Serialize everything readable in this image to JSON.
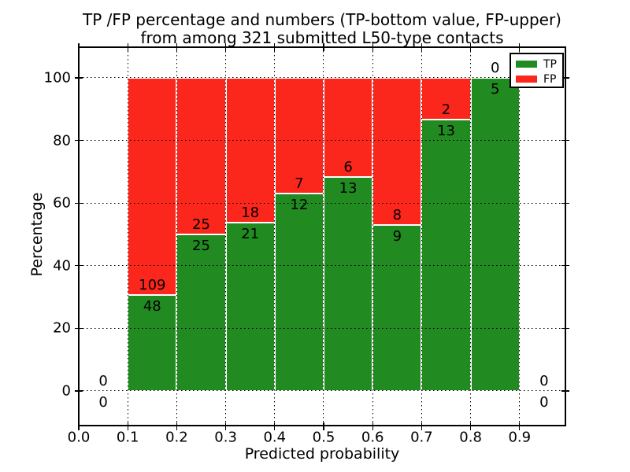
{
  "title": {
    "line1": "TP /FP percentage and numbers (TP-bottom value, FP-upper)",
    "line2": "from among 321 submitted L50-type contacts"
  },
  "legend": {
    "position": "upper right",
    "items": [
      {
        "label": "TP",
        "color": "#218a21"
      },
      {
        "label": "FP",
        "color": "#fb261c"
      }
    ]
  },
  "chart_data": {
    "type": "bar",
    "stacked": true,
    "normalized": "percent",
    "title": "TP /FP percentage and numbers (TP-bottom value, FP-upper)\nfrom among 321 submitted L50-type contacts",
    "xlabel": "Predicted probability",
    "ylabel": "Percentage",
    "x_tick_labels": [
      "0.0",
      "0.1",
      "0.2",
      "0.3",
      "0.4",
      "0.5",
      "0.6",
      "0.7",
      "0.8",
      "0.9"
    ],
    "x_tick_values": [
      0.0,
      0.1,
      0.2,
      0.3,
      0.4,
      0.5,
      0.6,
      0.7,
      0.8,
      0.9
    ],
    "y_tick_labels": [
      "0",
      "20",
      "40",
      "60",
      "80",
      "100"
    ],
    "y_tick_values": [
      0,
      20,
      40,
      60,
      80,
      100
    ],
    "xlim": [
      0.0,
      0.994
    ],
    "ylim": [
      -11.0,
      109.8
    ],
    "grid": true,
    "grid_style": "dotted",
    "series": [
      {
        "name": "TP",
        "color": "#218a21"
      },
      {
        "name": "FP",
        "color": "#fb261c"
      }
    ],
    "bins": [
      {
        "range": [
          0.0,
          0.1
        ],
        "tp": 0,
        "fp": 0
      },
      {
        "range": [
          0.1,
          0.2
        ],
        "tp": 48,
        "fp": 109
      },
      {
        "range": [
          0.2,
          0.3
        ],
        "tp": 25,
        "fp": 25
      },
      {
        "range": [
          0.3,
          0.4
        ],
        "tp": 21,
        "fp": 18
      },
      {
        "range": [
          0.4,
          0.5
        ],
        "tp": 12,
        "fp": 7
      },
      {
        "range": [
          0.5,
          0.6
        ],
        "tp": 13,
        "fp": 6
      },
      {
        "range": [
          0.6,
          0.7
        ],
        "tp": 9,
        "fp": 8
      },
      {
        "range": [
          0.7,
          0.8
        ],
        "tp": 13,
        "fp": 2
      },
      {
        "range": [
          0.8,
          0.9
        ],
        "tp": 5,
        "fp": 0
      },
      {
        "range": [
          0.9,
          1.0
        ],
        "tp": 0,
        "fp": 0
      }
    ]
  }
}
